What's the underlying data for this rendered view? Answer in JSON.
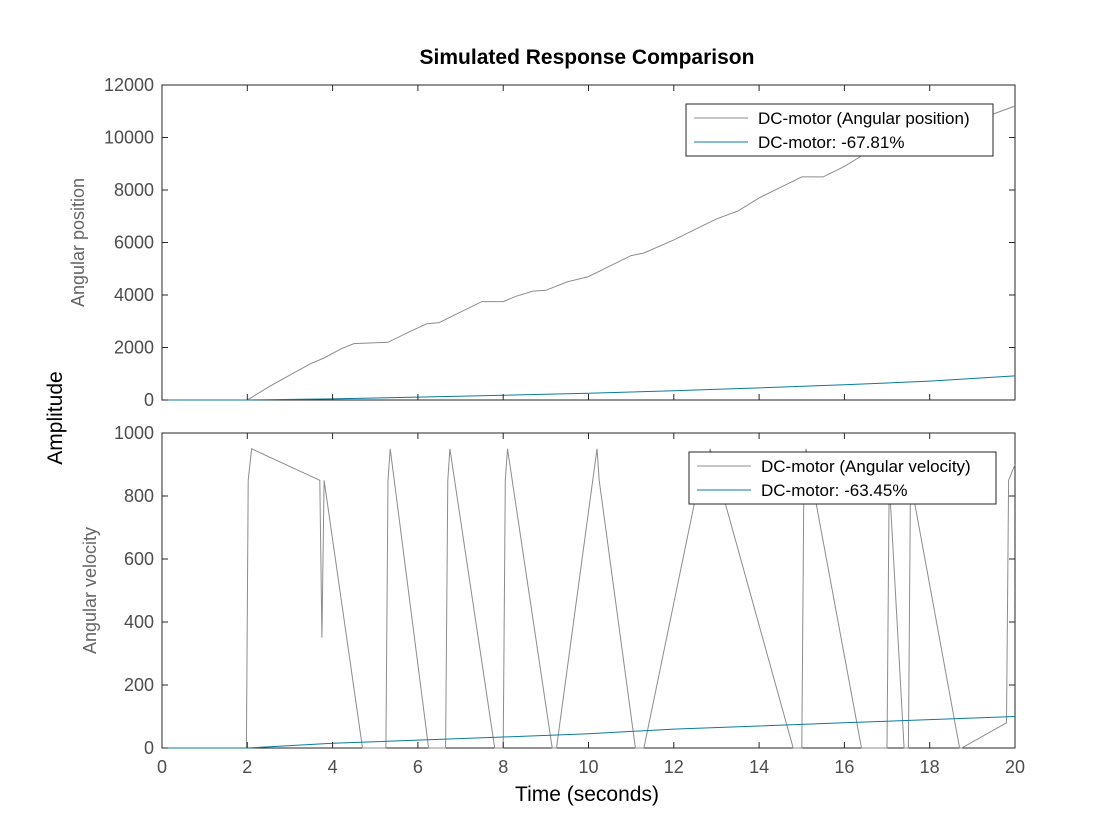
{
  "title": "Simulated Response Comparison",
  "shared_ylabel": "Amplitude",
  "xlabel": "Time (seconds)",
  "colors": {
    "measured": "#8c8c8c",
    "simulated": "#0b7a9c",
    "axes": "#262626"
  },
  "chart_data": [
    {
      "type": "line",
      "ylabel": "Angular position",
      "xlim": [
        0,
        20
      ],
      "ylim": [
        0,
        12000
      ],
      "xticks": [
        0,
        2,
        4,
        6,
        8,
        10,
        12,
        14,
        16,
        18,
        20
      ],
      "yticks": [
        0,
        2000,
        4000,
        6000,
        8000,
        10000,
        12000
      ],
      "legend_position": "top-right",
      "grid": false,
      "series": [
        {
          "name": "DC-motor (Angular position)",
          "color": "#8c8c8c",
          "x": [
            0,
            1,
            2,
            2.1,
            2.5,
            3,
            3.5,
            3.8,
            4.2,
            4.5,
            5,
            5.3,
            5.8,
            6.2,
            6.5,
            7,
            7.5,
            8,
            8.3,
            8.7,
            9,
            9.5,
            10,
            10.5,
            11,
            11.3,
            12,
            12.5,
            13,
            13.5,
            14,
            14.5,
            15,
            15.5,
            16,
            16.5,
            17,
            17.5,
            18,
            18.5,
            19,
            19.5,
            20
          ],
          "y": [
            0,
            0,
            0,
            100,
            500,
            950,
            1400,
            1600,
            1950,
            2150,
            2180,
            2200,
            2600,
            2900,
            2950,
            3350,
            3750,
            3750,
            3950,
            4150,
            4180,
            4500,
            4700,
            5100,
            5500,
            5600,
            6100,
            6500,
            6900,
            7200,
            7700,
            8100,
            8500,
            8500,
            8900,
            9400,
            9800,
            10100,
            10300,
            10500,
            10700,
            10900,
            11200
          ]
        },
        {
          "name": "DC-motor: -67.81%",
          "color": "#0b7a9c",
          "x": [
            0,
            2,
            4,
            6,
            8,
            10,
            12,
            14,
            16,
            18,
            20
          ],
          "y": [
            0,
            0,
            40,
            110,
            180,
            260,
            350,
            460,
            580,
            720,
            920
          ]
        }
      ]
    },
    {
      "type": "line",
      "ylabel": "Angular velocity",
      "xlim": [
        0,
        20
      ],
      "ylim": [
        0,
        1000
      ],
      "xticks": [
        0,
        2,
        4,
        6,
        8,
        10,
        12,
        14,
        16,
        18,
        20
      ],
      "yticks": [
        0,
        200,
        400,
        600,
        800,
        1000
      ],
      "legend_position": "top-right",
      "grid": false,
      "series": [
        {
          "name": "DC-motor (Angular velocity)",
          "color": "#8c8c8c",
          "x": [
            0,
            1.98,
            2.02,
            2.1,
            3.7,
            3.75,
            3.8,
            4.7,
            4.72,
            5.25,
            5.3,
            5.35,
            6.25,
            6.35,
            6.65,
            6.7,
            6.75,
            7.8,
            7.85,
            8.0,
            8.05,
            8.1,
            9.15,
            9.25,
            10.2,
            10.25,
            11.1,
            11.3,
            12.7,
            12.8,
            12.85,
            14.8,
            14.85,
            15.0,
            15.05,
            15.1,
            16.4,
            16.5,
            17.0,
            17.05,
            17.4,
            17.5,
            17.55,
            18.7,
            18.75,
            19.8,
            19.85,
            20
          ],
          "y": [
            0,
            0,
            850,
            950,
            850,
            350,
            850,
            0,
            0,
            0,
            850,
            950,
            0,
            0,
            0,
            850,
            950,
            0,
            0,
            0,
            850,
            950,
            0,
            0,
            950,
            850,
            0,
            0,
            920,
            850,
            950,
            0,
            0,
            0,
            850,
            950,
            0,
            0,
            0,
            850,
            0,
            0,
            850,
            0,
            0,
            80,
            850,
            900
          ]
        },
        {
          "name": "DC-motor: -63.45%",
          "color": "#0b7a9c",
          "x": [
            0,
            2,
            4,
            6,
            8,
            10,
            12,
            14,
            16,
            18,
            20
          ],
          "y": [
            0,
            0,
            15,
            25,
            35,
            45,
            60,
            70,
            80,
            90,
            100
          ]
        }
      ]
    }
  ]
}
